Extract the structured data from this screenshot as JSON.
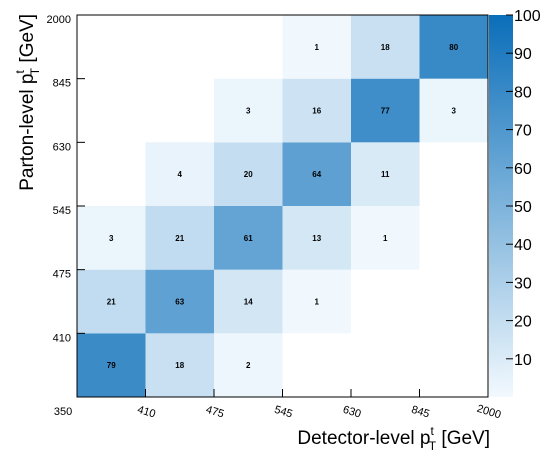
{
  "chart_data": {
    "type": "heatmap",
    "x_bin_edges": [
      "350",
      "410",
      "475",
      "545",
      "630",
      "845",
      "2000"
    ],
    "y_bin_edges": [
      "350",
      "410",
      "475",
      "545",
      "630",
      "845",
      "2000"
    ],
    "x_tick_labels": [
      "350",
      "410",
      "475",
      "545",
      "630",
      "845",
      "2000"
    ],
    "y_tick_labels": [
      "410",
      "475",
      "545",
      "630",
      "845",
      "2000"
    ],
    "xlabel": {
      "main": "Detector-level p",
      "sup": "t",
      "sub": "T",
      "unit": " [GeV]"
    },
    "ylabel": {
      "main": "Parton-level p",
      "sup": "t",
      "sub": "T",
      "unit": " [GeV]"
    },
    "cells": [
      {
        "xbin": 0,
        "ybin": 0,
        "value": 79
      },
      {
        "xbin": 1,
        "ybin": 0,
        "value": 18
      },
      {
        "xbin": 2,
        "ybin": 0,
        "value": 2
      },
      {
        "xbin": 0,
        "ybin": 1,
        "value": 21
      },
      {
        "xbin": 1,
        "ybin": 1,
        "value": 63
      },
      {
        "xbin": 2,
        "ybin": 1,
        "value": 14
      },
      {
        "xbin": 3,
        "ybin": 1,
        "value": 1
      },
      {
        "xbin": 0,
        "ybin": 2,
        "value": 3
      },
      {
        "xbin": 1,
        "ybin": 2,
        "value": 21
      },
      {
        "xbin": 2,
        "ybin": 2,
        "value": 61
      },
      {
        "xbin": 3,
        "ybin": 2,
        "value": 13
      },
      {
        "xbin": 4,
        "ybin": 2,
        "value": 1
      },
      {
        "xbin": 1,
        "ybin": 3,
        "value": 4
      },
      {
        "xbin": 2,
        "ybin": 3,
        "value": 20
      },
      {
        "xbin": 3,
        "ybin": 3,
        "value": 64
      },
      {
        "xbin": 4,
        "ybin": 3,
        "value": 11
      },
      {
        "xbin": 2,
        "ybin": 4,
        "value": 3
      },
      {
        "xbin": 3,
        "ybin": 4,
        "value": 16
      },
      {
        "xbin": 4,
        "ybin": 4,
        "value": 77
      },
      {
        "xbin": 5,
        "ybin": 4,
        "value": 3
      },
      {
        "xbin": 3,
        "ybin": 5,
        "value": 1
      },
      {
        "xbin": 4,
        "ybin": 5,
        "value": 18
      },
      {
        "xbin": 5,
        "ybin": 5,
        "value": 80
      }
    ],
    "zlim": [
      0,
      100
    ],
    "colorbar_ticks": [
      "10",
      "20",
      "30",
      "40",
      "50",
      "60",
      "70",
      "80",
      "90",
      "100"
    ],
    "colorbar_tick_values": [
      10,
      20,
      30,
      40,
      50,
      60,
      70,
      80,
      90,
      100
    ],
    "colors": {
      "low": "#f2f9fe",
      "high": "#0a6eb9"
    },
    "grid": false
  }
}
